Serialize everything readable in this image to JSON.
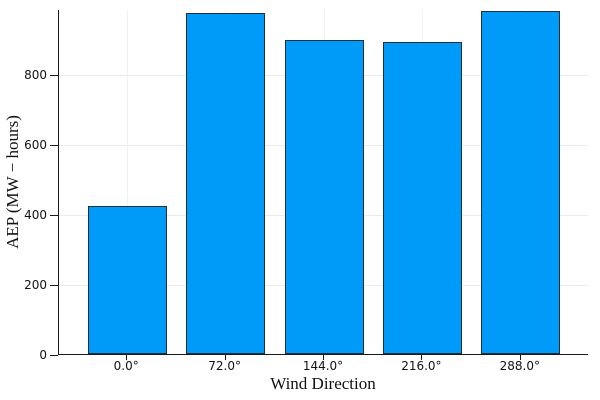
{
  "chart_data": {
    "type": "bar",
    "title": "",
    "categories": [
      "0.0°",
      "72.0°",
      "144.0°",
      "216.0°",
      "288.0°"
    ],
    "values": [
      423,
      974,
      897,
      891,
      980
    ],
    "xlabel": "Wind Direction",
    "ylabel": "AEP (MW − hours)",
    "ylim": [
      0,
      986
    ],
    "yticks": [
      0,
      200,
      400,
      600,
      800
    ],
    "grid": true,
    "legend": "none",
    "bar_color": "#009af9",
    "bar_edge_color": "#23303a",
    "axis_color": "#1a1a1a",
    "grid_color": "#ebebeb",
    "tick_label_color": "#131313",
    "background": "#ffffff"
  }
}
